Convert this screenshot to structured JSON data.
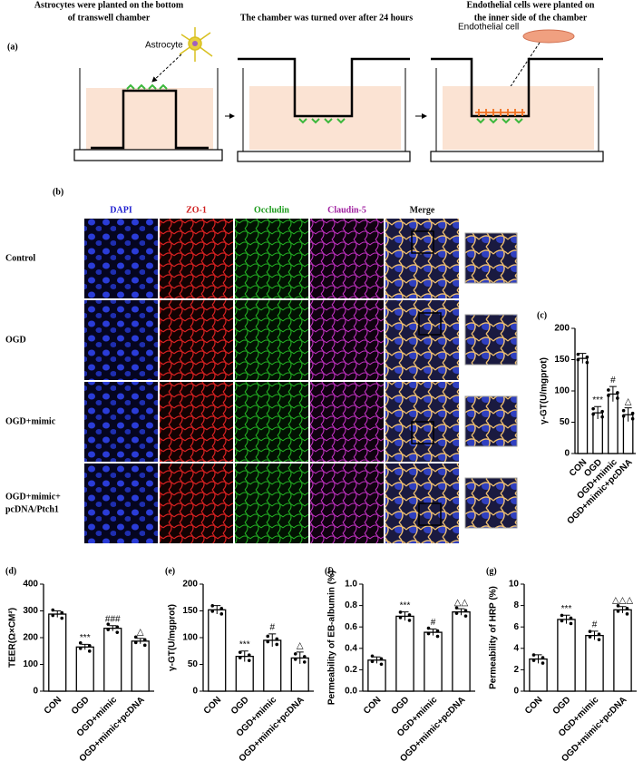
{
  "figure": {
    "panel_a": "(a)",
    "panel_b": "(b)",
    "step1_lines": [
      "Astrocytes were planted on the bottom",
      "of transwell chamber"
    ],
    "step2": "The chamber was turned over after 24 hours",
    "step3_lines": [
      "Endothelial cells were planted on",
      "the inner side of the chamber"
    ],
    "astrocyte_label": "Astrocyte",
    "endothelial_label": "Endothelial cell",
    "stains": [
      "DAPI",
      "ZO-1",
      "Occludin",
      "Claudin-5",
      "Merge"
    ],
    "stain_colors": [
      "#1f1fd0",
      "#d02020",
      "#1a9a1a",
      "#a020a0",
      "#111111"
    ],
    "groups": [
      [
        "Control"
      ],
      [
        "OGD"
      ],
      [
        "OGD+mimic"
      ],
      [
        "OGD+mimic+",
        "pcDNA/Ptch1"
      ]
    ]
  },
  "chart_data": [
    {
      "type": "bar",
      "panel_label": "(c)",
      "y_label": "γ-GT(U/mgprot)",
      "categories": [
        "CON",
        "OGD",
        "OGD+mimic",
        "OGD+mimic+pcDNA"
      ],
      "values": [
        152,
        65,
        95,
        62
      ],
      "errors": [
        8,
        10,
        12,
        11
      ],
      "annotations": [
        null,
        "***",
        "#",
        "△"
      ],
      "ylim": [
        0,
        200
      ],
      "yticks": [
        0,
        50,
        100,
        150,
        200
      ]
    },
    {
      "type": "bar",
      "panel_label": "(d)",
      "y_label": "TEER(Ω×CM²)",
      "categories": [
        "CON",
        "OGD",
        "OGD+mimic",
        "OGD+mimic+pcDNA"
      ],
      "values": [
        288,
        165,
        235,
        187
      ],
      "errors": [
        12,
        10,
        10,
        10
      ],
      "annotations": [
        null,
        "***",
        "###",
        "△"
      ],
      "ylim": [
        0,
        400
      ],
      "yticks": [
        0,
        100,
        200,
        300,
        400
      ]
    },
    {
      "type": "bar",
      "panel_label": "(e)",
      "y_label": "γ-GT(U/mgprot)",
      "categories": [
        "CON",
        "OGD",
        "OGD+mimic",
        "OGD+mimic+pcDNA"
      ],
      "values": [
        152,
        65,
        95,
        62
      ],
      "errors": [
        8,
        10,
        12,
        11
      ],
      "annotations": [
        null,
        "***",
        "#",
        "△"
      ],
      "ylim": [
        0,
        200
      ],
      "yticks": [
        0,
        50,
        100,
        150,
        200
      ]
    },
    {
      "type": "bar",
      "panel_label": "(f)",
      "y_label": "Permeability of EB-albumin (%)",
      "categories": [
        "CON",
        "OGD",
        "OGD+mimic",
        "OGD+mimic+pcDNA"
      ],
      "values": [
        0.29,
        0.7,
        0.55,
        0.74
      ],
      "errors": [
        0.03,
        0.04,
        0.03,
        0.03
      ],
      "annotations": [
        null,
        "***",
        "#",
        "△△"
      ],
      "ylim": [
        0,
        1.0
      ],
      "yticks": [
        {
          "value": 0,
          "label": "0.0"
        },
        0.2,
        0.4,
        0.6,
        0.8,
        {
          "value": 1.0,
          "label": "1.0"
        }
      ]
    },
    {
      "type": "bar",
      "panel_label": "(g)",
      "y_label": "Permeability of HRP (%)",
      "categories": [
        "CON",
        "OGD",
        "OGD+mimic",
        "OGD+mimic+pcDNA"
      ],
      "values": [
        3.0,
        6.7,
        5.2,
        7.6
      ],
      "errors": [
        0.4,
        0.4,
        0.4,
        0.3
      ],
      "annotations": [
        null,
        "***",
        "#",
        "△△△"
      ],
      "ylim": [
        0,
        10
      ],
      "yticks": [
        0,
        2,
        4,
        6,
        8,
        10
      ]
    }
  ]
}
